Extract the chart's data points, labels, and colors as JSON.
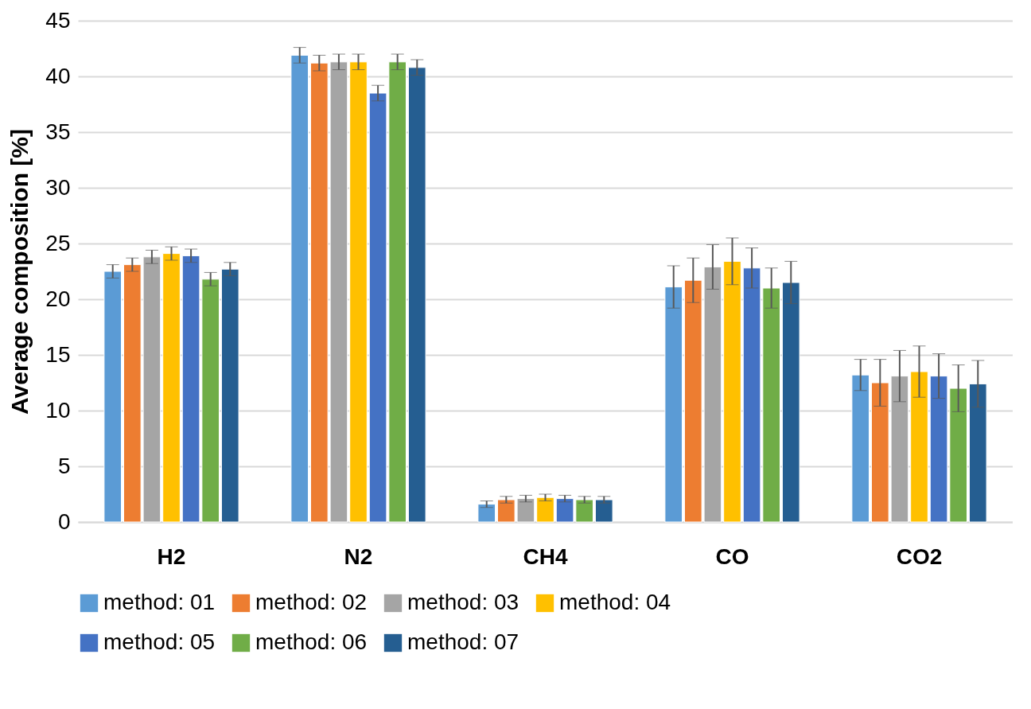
{
  "chart_data": {
    "type": "bar",
    "ylabel": "Average composition [%]",
    "categories": [
      "H2",
      "N2",
      "CH4",
      "CO",
      "CO2"
    ],
    "series": [
      {
        "name": "method: 01",
        "color": "#5b9bd5",
        "values": [
          22.5,
          41.9,
          1.6,
          21.1,
          13.2
        ],
        "errors": [
          0.6,
          0.7,
          0.3,
          1.9,
          1.4
        ]
      },
      {
        "name": "method: 02",
        "color": "#ed7d31",
        "values": [
          23.1,
          41.2,
          2.0,
          21.7,
          12.5
        ],
        "errors": [
          0.6,
          0.7,
          0.3,
          2.0,
          2.1
        ]
      },
      {
        "name": "method: 03",
        "color": "#a5a5a5",
        "values": [
          23.8,
          41.3,
          2.1,
          22.9,
          13.1
        ],
        "errors": [
          0.6,
          0.7,
          0.3,
          2.0,
          2.3
        ]
      },
      {
        "name": "method: 04",
        "color": "#ffc000",
        "values": [
          24.1,
          41.3,
          2.2,
          23.4,
          13.5
        ],
        "errors": [
          0.6,
          0.7,
          0.3,
          2.1,
          2.3
        ]
      },
      {
        "name": "method: 05",
        "color": "#4472c4",
        "values": [
          23.9,
          38.5,
          2.1,
          22.8,
          13.1
        ],
        "errors": [
          0.6,
          0.7,
          0.3,
          1.8,
          2.0
        ]
      },
      {
        "name": "method: 06",
        "color": "#70ad47",
        "values": [
          21.8,
          41.3,
          2.0,
          21.0,
          12.0
        ],
        "errors": [
          0.6,
          0.7,
          0.3,
          1.8,
          2.1
        ]
      },
      {
        "name": "method: 07",
        "color": "#255e91",
        "values": [
          22.7,
          40.8,
          2.0,
          21.5,
          12.4
        ],
        "errors": [
          0.6,
          0.7,
          0.3,
          1.9,
          2.1
        ]
      }
    ],
    "ylim": [
      0,
      45
    ],
    "yticks": [
      0,
      5,
      10,
      15,
      20,
      25,
      30,
      35,
      40,
      45
    ],
    "grid": "y",
    "legend": "bottom"
  }
}
